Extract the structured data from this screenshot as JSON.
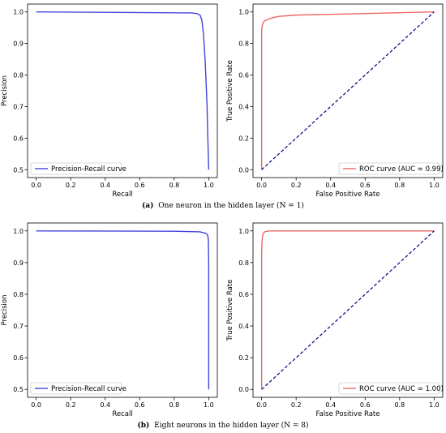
{
  "colors": {
    "pr": "#4444dd",
    "roc": "#ee6666",
    "diag": "#000080"
  },
  "captions": [
    {
      "label": "(a)",
      "text": "One neuron in the hidden layer (N = 1)"
    },
    {
      "label": "(b)",
      "text": "Eight neurons in the hidden layer (N = 8)"
    }
  ],
  "chart_data": [
    {
      "type": "line",
      "xlabel": "Recall",
      "ylabel": "Precision",
      "xlim": [
        -0.05,
        1.05
      ],
      "ylim": [
        0.475,
        1.025
      ],
      "xticks": [
        "0.0",
        "0.2",
        "0.4",
        "0.6",
        "0.8",
        "1.0"
      ],
      "yticks": [
        "0.5",
        "0.6",
        "0.7",
        "0.8",
        "0.9",
        "1.0"
      ],
      "legend": "lower-left",
      "series": [
        {
          "name": "Precision-Recall curve",
          "x": [
            0,
            0.9,
            0.93,
            0.95,
            0.96,
            0.97,
            0.98,
            0.99,
            0.995,
            1.0,
            1.0
          ],
          "y": [
            1.0,
            0.997,
            0.995,
            0.99,
            0.975,
            0.93,
            0.84,
            0.71,
            0.6,
            0.5,
            0.5
          ]
        }
      ]
    },
    {
      "type": "line",
      "xlabel": "False Positive Rate",
      "ylabel": "True Positive Rate",
      "xlim": [
        -0.05,
        1.05
      ],
      "ylim": [
        -0.05,
        1.05
      ],
      "xticks": [
        "0.0",
        "0.2",
        "0.4",
        "0.6",
        "0.8",
        "1.0"
      ],
      "yticks": [
        "0.0",
        "0.2",
        "0.4",
        "0.6",
        "0.8",
        "1.0"
      ],
      "legend": "lower-right",
      "series": [
        {
          "name": "ROC curve (AUC = 0.99)",
          "x": [
            0,
            0,
            0.005,
            0.01,
            0.02,
            0.04,
            0.07,
            0.1,
            0.2,
            0.4,
            0.6,
            0.8,
            1.0
          ],
          "y": [
            0,
            0.89,
            0.92,
            0.935,
            0.945,
            0.955,
            0.965,
            0.972,
            0.98,
            0.985,
            0.99,
            0.995,
            1.0
          ]
        },
        {
          "x": [
            0,
            1
          ],
          "y": [
            0,
            1
          ]
        }
      ]
    },
    {
      "type": "line",
      "xlabel": "Recall",
      "ylabel": "Precision",
      "xlim": [
        -0.05,
        1.05
      ],
      "ylim": [
        0.475,
        1.025
      ],
      "xticks": [
        "0.0",
        "0.2",
        "0.4",
        "0.6",
        "0.8",
        "1.0"
      ],
      "yticks": [
        "0.5",
        "0.6",
        "0.7",
        "0.8",
        "0.9",
        "1.0"
      ],
      "legend": "lower-left",
      "series": [
        {
          "name": "Precision-Recall curve",
          "x": [
            0,
            0.8,
            0.95,
            0.98,
            0.99,
            0.995,
            0.998,
            1.0,
            1.0
          ],
          "y": [
            1.0,
            0.999,
            0.997,
            0.993,
            0.99,
            0.985,
            0.97,
            0.9,
            0.5
          ]
        }
      ]
    },
    {
      "type": "line",
      "xlabel": "False Positive Rate",
      "ylabel": "True Positive Rate",
      "xlim": [
        -0.05,
        1.05
      ],
      "ylim": [
        -0.05,
        1.05
      ],
      "xticks": [
        "0.0",
        "0.2",
        "0.4",
        "0.6",
        "0.8",
        "1.0"
      ],
      "yticks": [
        "0.0",
        "0.2",
        "0.4",
        "0.6",
        "0.8",
        "1.0"
      ],
      "legend": "lower-right",
      "series": [
        {
          "name": "ROC curve (AUC = 1.00)",
          "x": [
            0,
            0,
            0.002,
            0.005,
            0.01,
            0.02,
            0.04,
            1.0
          ],
          "y": [
            0,
            0.85,
            0.93,
            0.965,
            0.985,
            0.995,
            1.0,
            1.0
          ]
        },
        {
          "x": [
            0,
            1
          ],
          "y": [
            0,
            1
          ]
        }
      ]
    }
  ]
}
